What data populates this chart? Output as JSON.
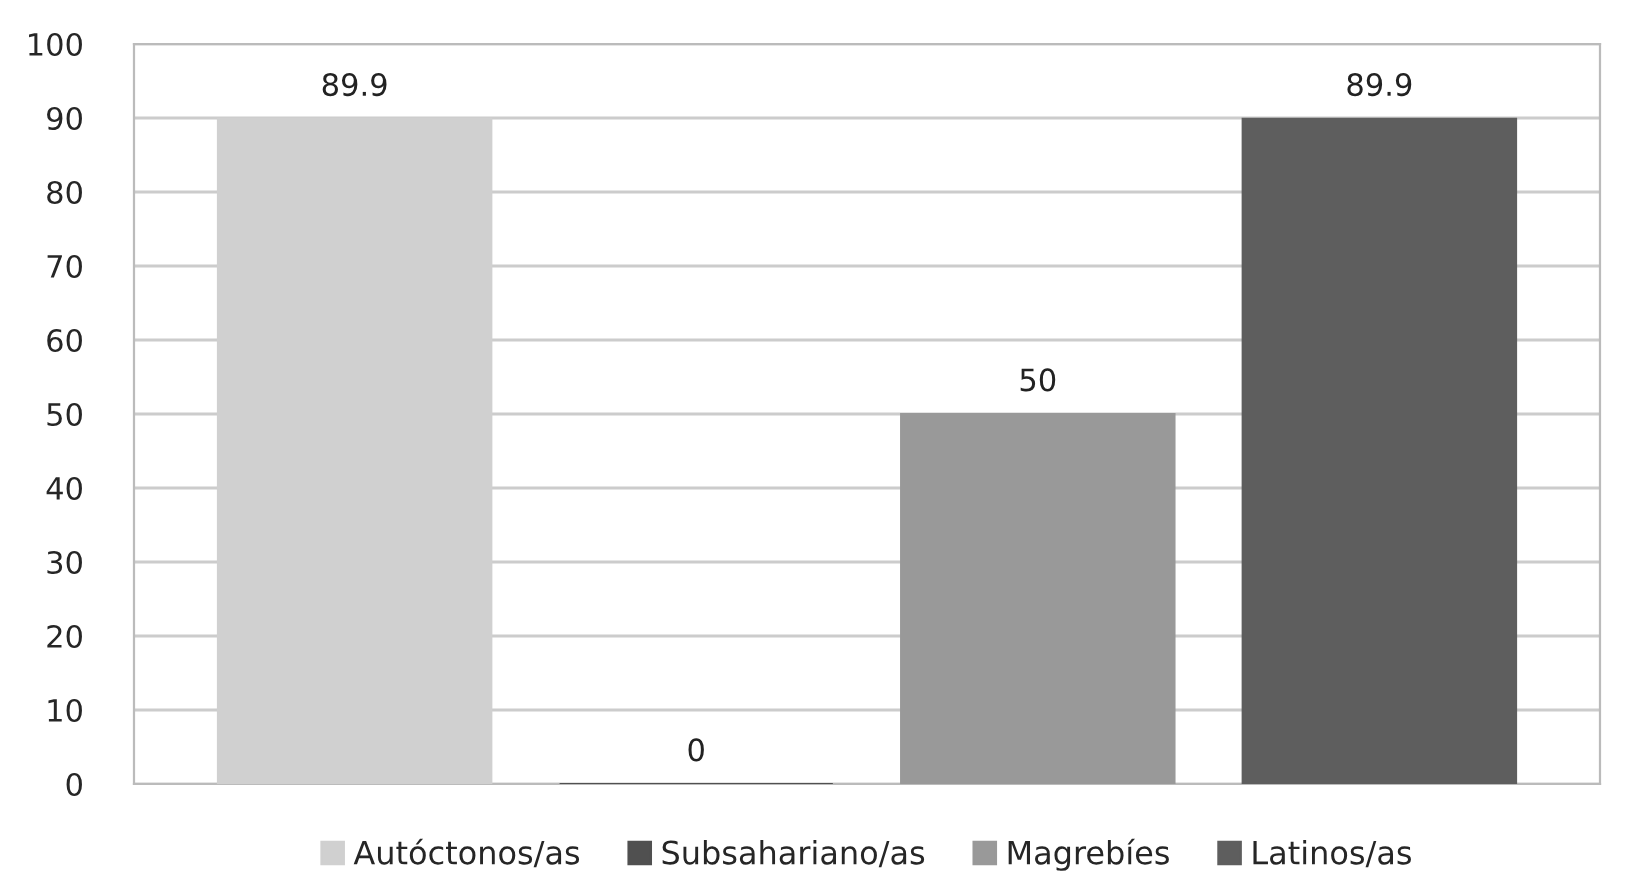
{
  "chart_data": {
    "type": "bar",
    "categories": [
      null
    ],
    "series": [
      {
        "name": "Autóctonos/as",
        "color": "#d0d0d0",
        "values": [
          89.9
        ]
      },
      {
        "name": "Subsahariano/as",
        "color": "#505050",
        "values": [
          0
        ]
      },
      {
        "name": "Magrebíes",
        "color": "#999999",
        "values": [
          50
        ]
      },
      {
        "name": "Latinos/as",
        "color": "#5e5e5e",
        "values": [
          89.9
        ]
      }
    ],
    "ylim": [
      0,
      100
    ],
    "yticks": [
      0,
      10,
      20,
      30,
      40,
      50,
      60,
      70,
      80,
      90,
      100
    ],
    "grid": "y",
    "legend": "bottom",
    "data_labels": true
  }
}
